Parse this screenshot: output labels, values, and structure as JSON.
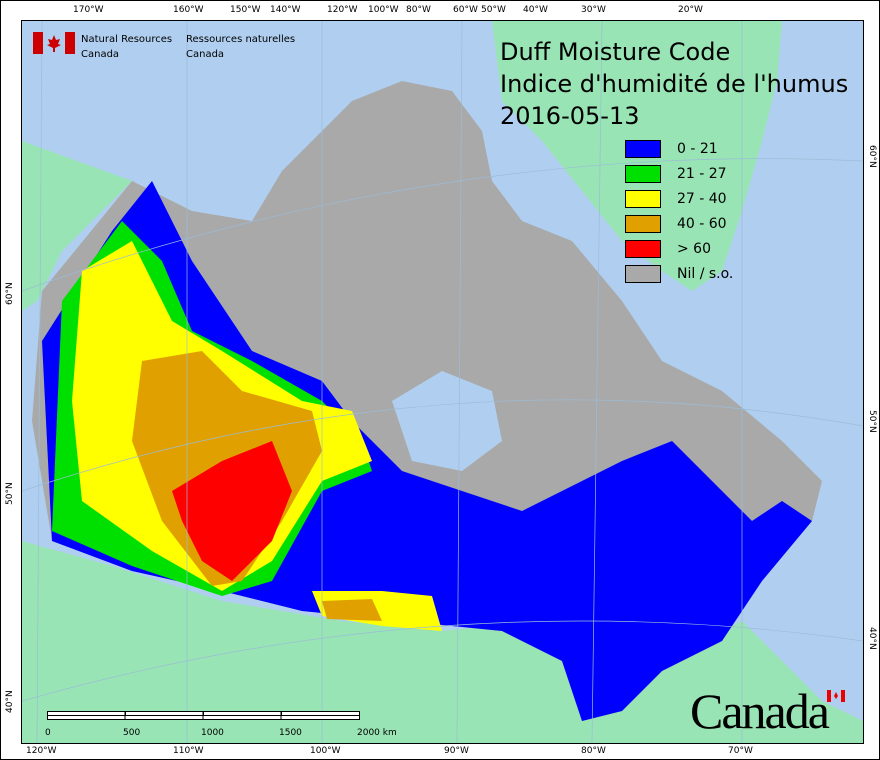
{
  "header": {
    "agency_en_1": "Natural Resources",
    "agency_en_2": "Canada",
    "agency_fr_1": "Ressources naturelles",
    "agency_fr_2": "Canada"
  },
  "title": {
    "line1": "Duff Moisture Code",
    "line2": "Indice d'humidité de l'humus",
    "date": "2016-05-13"
  },
  "legend": [
    {
      "label": "0 - 21",
      "color": "#0000ff"
    },
    {
      "label": "21 - 27",
      "color": "#00e000"
    },
    {
      "label": "27 - 40",
      "color": "#ffff00"
    },
    {
      "label": "40 - 60",
      "color": "#e0a000"
    },
    {
      "label": "> 60",
      "color": "#ff0000"
    },
    {
      "label": "Nil / s.o.",
      "color": "#a9a9a9"
    }
  ],
  "top_ticks": [
    "170°W",
    "160°W",
    "150°W",
    "140°W",
    "120°W",
    "100°W",
    "80°W",
    "60°W",
    "50°W",
    "40°W",
    "30°W",
    "20°W"
  ],
  "bottom_ticks": [
    "120°W",
    "110°W",
    "100°W",
    "90°W",
    "80°W",
    "70°W"
  ],
  "left_ticks": [
    "60°N",
    "50°N",
    "40°N"
  ],
  "right_ticks": [
    "60°N",
    "50°N",
    "40°N"
  ],
  "scale": {
    "labels": [
      "0",
      "500",
      "1000",
      "1500",
      "2000 km"
    ]
  },
  "wordmark": "Canada",
  "colors": {
    "water": "#b0cff0",
    "land_other": "#98e4b4",
    "nodata": "#a9a9a9"
  }
}
